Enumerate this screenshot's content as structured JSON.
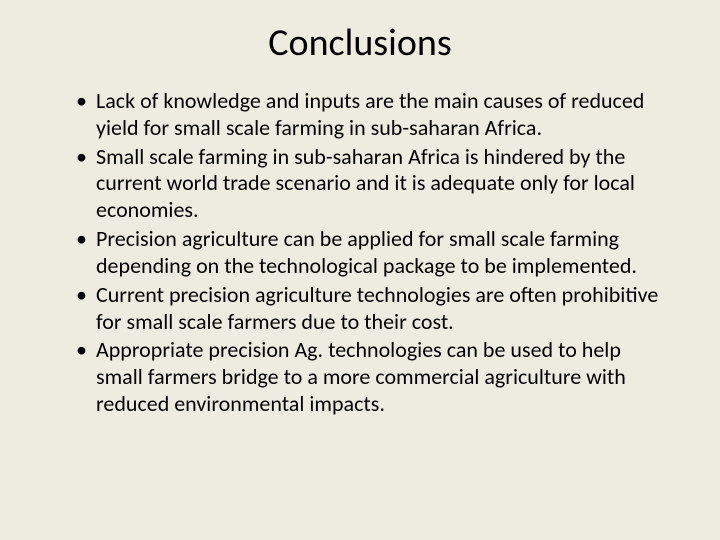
{
  "slide": {
    "background_color": "#eeece1",
    "text_color": "#000000",
    "title": "Conclusions",
    "title_fontsize": 38,
    "body_fontsize": 22,
    "font_family": "Calibri",
    "bullets": [
      "Lack of knowledge and inputs are the main causes of reduced yield for small scale farming in sub-saharan Africa.",
      "Small scale farming in sub-saharan Africa is hindered by the current world trade scenario and it is adequate only for local economies.",
      "Precision agriculture can be applied for small scale farming depending on the technological package to be implemented.",
      "Current precision agriculture technologies are often prohibitive for small scale farmers due to their cost.",
      "Appropriate precision Ag. technologies can be used to help small farmers bridge to a more commercial agriculture with reduced environmental impacts."
    ]
  }
}
